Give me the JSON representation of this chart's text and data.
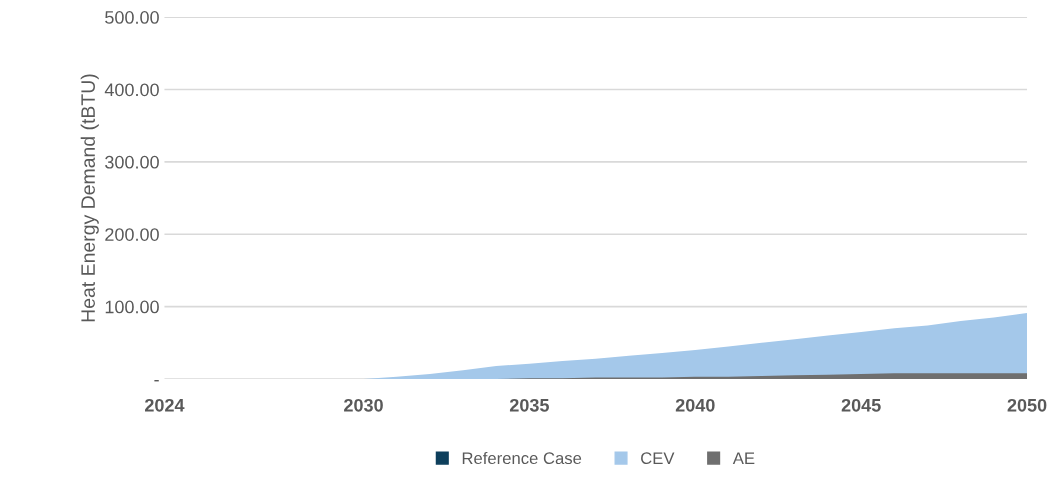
{
  "chart_data": {
    "type": "area",
    "ylabel": "Heat Energy Demand (tBTU)",
    "x": [
      2024,
      2025,
      2026,
      2027,
      2028,
      2029,
      2030,
      2031,
      2032,
      2033,
      2034,
      2035,
      2036,
      2037,
      2038,
      2039,
      2040,
      2041,
      2042,
      2043,
      2044,
      2045,
      2046,
      2047,
      2048,
      2049,
      2050
    ],
    "series": [
      {
        "name": "Reference Case",
        "color": "#0e3f5c",
        "values": [
          null,
          null,
          null,
          null,
          null,
          null,
          null,
          null,
          null,
          null,
          null,
          null,
          null,
          null,
          null,
          null,
          null,
          null,
          null,
          null,
          null,
          null,
          null,
          null,
          null,
          null,
          null
        ]
      },
      {
        "name": "CEV",
        "color": "#a4c8ea",
        "values": [
          0,
          0,
          0,
          0,
          0,
          0,
          0,
          3,
          7,
          12,
          18,
          21,
          25,
          28,
          32,
          36,
          40,
          45,
          50,
          55,
          60,
          65,
          70,
          74,
          80,
          85,
          91
        ]
      },
      {
        "name": "AE",
        "color": "#6f6f6f",
        "values": [
          0,
          0,
          0,
          0,
          0,
          0,
          0,
          0,
          0,
          0,
          0,
          1,
          1,
          2,
          2,
          2,
          3,
          3,
          4,
          5,
          6,
          7,
          8,
          8,
          8,
          8,
          8
        ]
      }
    ],
    "xlim": [
      2024,
      2050
    ],
    "xticks": [
      2024,
      2030,
      2035,
      2040,
      2045,
      2050
    ],
    "ylim": [
      0,
      500
    ],
    "yticks": [
      {
        "value": 0,
        "label": "-"
      },
      {
        "value": 100,
        "label": "100.00"
      },
      {
        "value": 200,
        "label": "200.00"
      },
      {
        "value": 300,
        "label": "300.00"
      },
      {
        "value": 400,
        "label": "400.00"
      },
      {
        "value": 500,
        "label": "500.00"
      }
    ],
    "grid": "y",
    "legend": "bottom"
  }
}
